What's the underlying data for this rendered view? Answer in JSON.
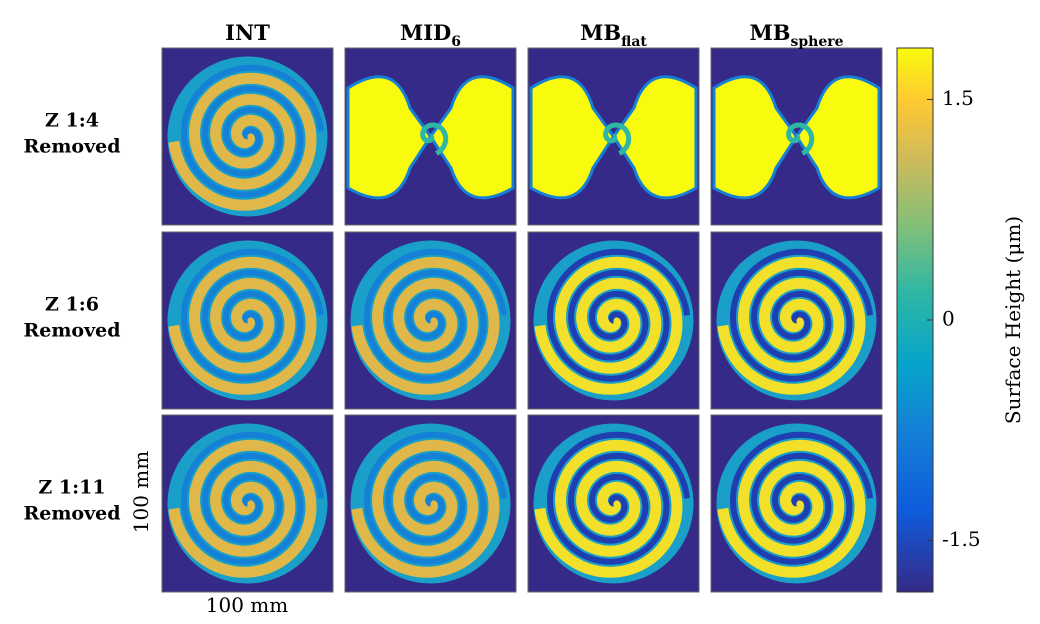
{
  "columns": [
    {
      "base": "INT"
    },
    {
      "base": "MID",
      "sub": "6"
    },
    {
      "base": "MB",
      "sub": "flat"
    },
    {
      "base": "MB",
      "sub": "sphere"
    }
  ],
  "rows": [
    [
      "Z 1:4",
      "Removed"
    ],
    [
      "Z 1:6",
      "Removed"
    ],
    [
      "Z 1:11",
      "Removed"
    ]
  ],
  "panel_size_labels": {
    "x": "100 mm",
    "y": "100 mm"
  },
  "colorbar": {
    "label": "Surface Height (μm)",
    "lim": [
      -1.85,
      1.85
    ],
    "ticks": [
      -1.5,
      0,
      1.5
    ]
  }
}
